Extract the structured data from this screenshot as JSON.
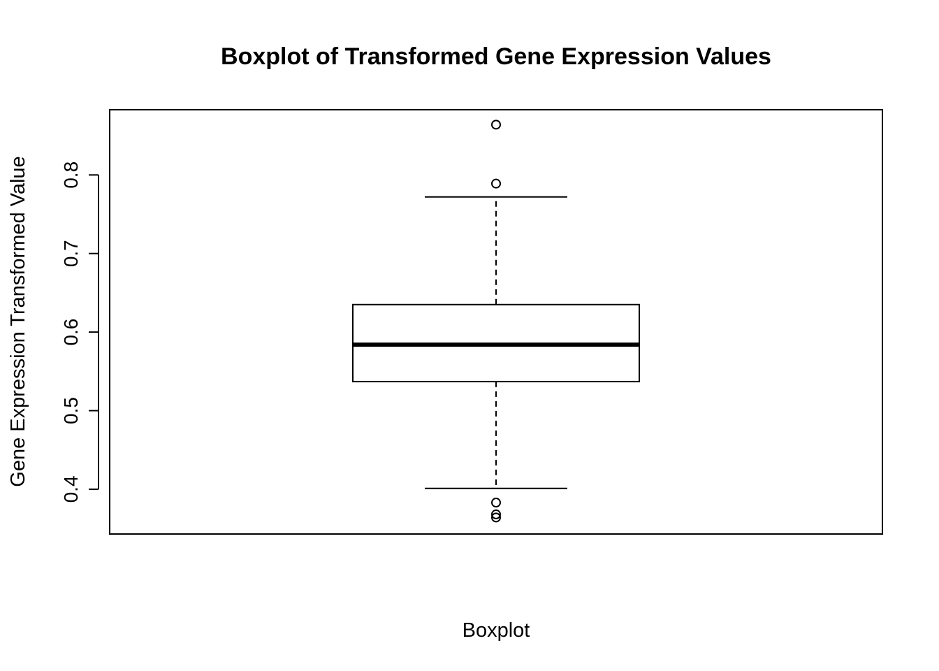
{
  "chart_data": {
    "type": "boxplot",
    "title": "Boxplot of Transformed Gene Expression Values",
    "xlabel": "Boxplot",
    "ylabel": "Gene Expression Transformed Value",
    "ylim": [
      0.343,
      0.883
    ],
    "yticks": [
      0.4,
      0.5,
      0.6,
      0.7,
      0.8
    ],
    "ytick_labels": [
      "0.4",
      "0.5",
      "0.6",
      "0.7",
      "0.8"
    ],
    "grid": false,
    "box": {
      "lower_whisker": 0.401,
      "q1": 0.537,
      "median": 0.584,
      "q3": 0.635,
      "upper_whisker": 0.772
    },
    "outliers": [
      0.864,
      0.789,
      0.383,
      0.368,
      0.364
    ]
  }
}
